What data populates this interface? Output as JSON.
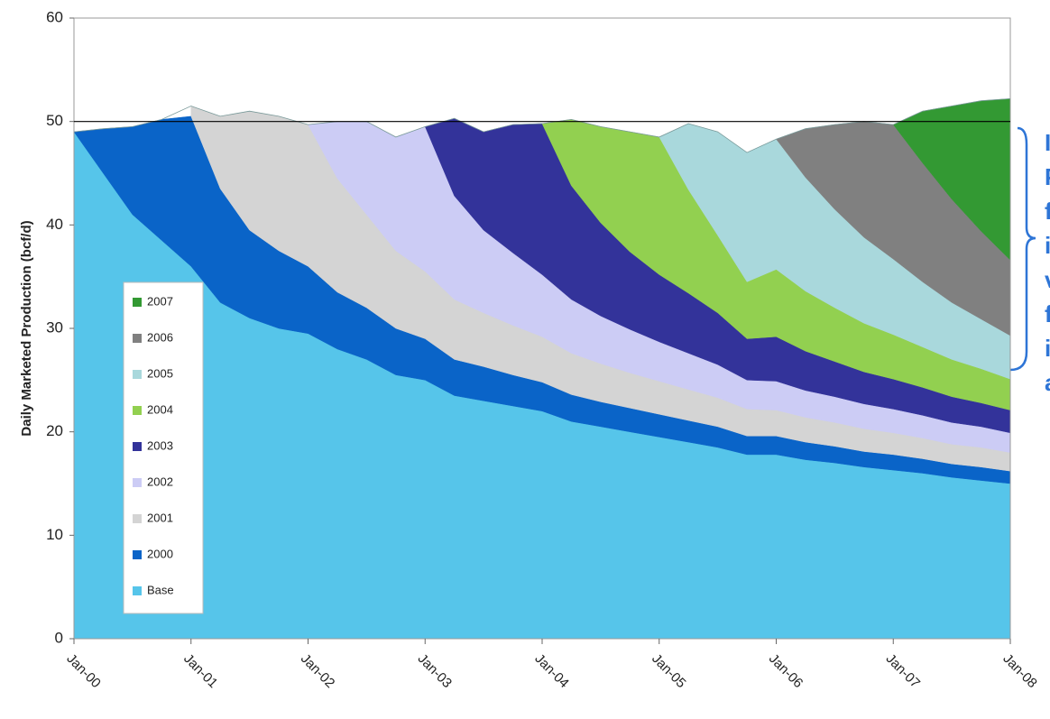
{
  "chart_data": {
    "type": "stacked_area",
    "y_label": "Daily Marketed Production (bcf/d)",
    "categories": [
      "Jan-00",
      null,
      null,
      null,
      "Jan-01",
      null,
      null,
      null,
      "Jan-02",
      null,
      null,
      null,
      "Jan-03",
      null,
      null,
      null,
      "Jan-04",
      null,
      null,
      null,
      "Jan-05",
      null,
      null,
      null,
      "Jan-06",
      null,
      null,
      null,
      "Jan-07",
      null,
      null,
      null,
      "Jan-08"
    ],
    "ylim": [
      0,
      60
    ],
    "yticks": [
      0,
      10,
      20,
      30,
      40,
      50,
      60
    ],
    "reference_line": 50,
    "legend": "left",
    "annotation_lines": [
      "I",
      "P",
      "f",
      "i",
      "v",
      "f",
      "i",
      "a"
    ],
    "annotation_color": "#2e75d6",
    "series": [
      {
        "name": "Base",
        "color": "#56c5ea",
        "values": [
          49,
          45,
          41,
          38.5,
          36,
          32.5,
          31,
          30,
          29.5,
          28,
          27,
          25.5,
          25,
          23.5,
          23,
          22.5,
          22,
          21,
          20.5,
          20,
          19.5,
          19,
          18.5,
          17.8,
          17.8,
          17.3,
          17,
          16.6,
          16.3,
          16,
          15.6,
          15.3,
          15
        ]
      },
      {
        "name": "2000",
        "color": "#0a64c8",
        "values": [
          0,
          4.3,
          8.5,
          11.7,
          14.5,
          11,
          8.5,
          7.5,
          6.5,
          5.5,
          5,
          4.5,
          4,
          3.5,
          3.3,
          3,
          2.8,
          2.6,
          2.4,
          2.3,
          2.2,
          2.1,
          2,
          1.8,
          1.8,
          1.7,
          1.6,
          1.5,
          1.5,
          1.4,
          1.3,
          1.3,
          1.2
        ]
      },
      {
        "name": "2001",
        "color": "#d4d4d4",
        "values": [
          null,
          null,
          null,
          null,
          1,
          7,
          11.5,
          13,
          13.7,
          11,
          9,
          7.5,
          6.5,
          5.8,
          5.2,
          4.8,
          4.4,
          4,
          3.7,
          3.4,
          3.2,
          3,
          2.8,
          2.6,
          2.5,
          2.4,
          2.3,
          2.2,
          2.1,
          2,
          1.9,
          1.9,
          1.8
        ]
      },
      {
        "name": "2002",
        "color": "#ccccf5",
        "values": [
          null,
          null,
          null,
          null,
          null,
          null,
          null,
          null,
          0,
          5.5,
          9,
          11,
          14,
          10,
          8,
          7,
          6,
          5.2,
          4.6,
          4.2,
          3.8,
          3.5,
          3.2,
          2.8,
          2.8,
          2.6,
          2.5,
          2.4,
          2.3,
          2.2,
          2.1,
          2,
          1.9
        ]
      },
      {
        "name": "2003",
        "color": "#33339a",
        "values": [
          null,
          null,
          null,
          null,
          null,
          null,
          null,
          null,
          null,
          null,
          null,
          null,
          0,
          7.5,
          9.5,
          12.4,
          14.6,
          11,
          9,
          7.5,
          6.5,
          5.8,
          5,
          4,
          4.3,
          3.8,
          3.4,
          3.1,
          2.9,
          2.7,
          2.5,
          2.3,
          2.2
        ]
      },
      {
        "name": "2004",
        "color": "#92d050",
        "values": [
          null,
          null,
          null,
          null,
          null,
          null,
          null,
          null,
          null,
          null,
          null,
          null,
          null,
          null,
          null,
          null,
          0,
          6.4,
          9.3,
          11.6,
          13.3,
          10,
          7.5,
          5.5,
          6.5,
          5.8,
          5.2,
          4.7,
          4.3,
          3.9,
          3.6,
          3.3,
          3
        ]
      },
      {
        "name": "2005",
        "color": "#a9d8dc",
        "values": [
          null,
          null,
          null,
          null,
          null,
          null,
          null,
          null,
          null,
          null,
          null,
          null,
          null,
          null,
          null,
          null,
          null,
          null,
          null,
          null,
          0,
          6.4,
          10,
          12.5,
          12.6,
          11,
          9.5,
          8.3,
          7.3,
          6.3,
          5.5,
          4.8,
          4.2
        ]
      },
      {
        "name": "2006",
        "color": "#808080",
        "values": [
          null,
          null,
          null,
          null,
          null,
          null,
          null,
          null,
          null,
          null,
          null,
          null,
          null,
          null,
          null,
          null,
          null,
          null,
          null,
          null,
          null,
          null,
          null,
          null,
          0,
          4.7,
          8.2,
          11.2,
          13,
          11.5,
          10,
          8.5,
          7.3
        ]
      },
      {
        "name": "2007",
        "color": "#339933",
        "values": [
          null,
          null,
          null,
          null,
          null,
          null,
          null,
          null,
          null,
          null,
          null,
          null,
          null,
          null,
          null,
          null,
          null,
          null,
          null,
          null,
          null,
          null,
          null,
          null,
          null,
          null,
          null,
          null,
          0,
          5,
          9,
          12.6,
          15.6
        ]
      }
    ]
  }
}
